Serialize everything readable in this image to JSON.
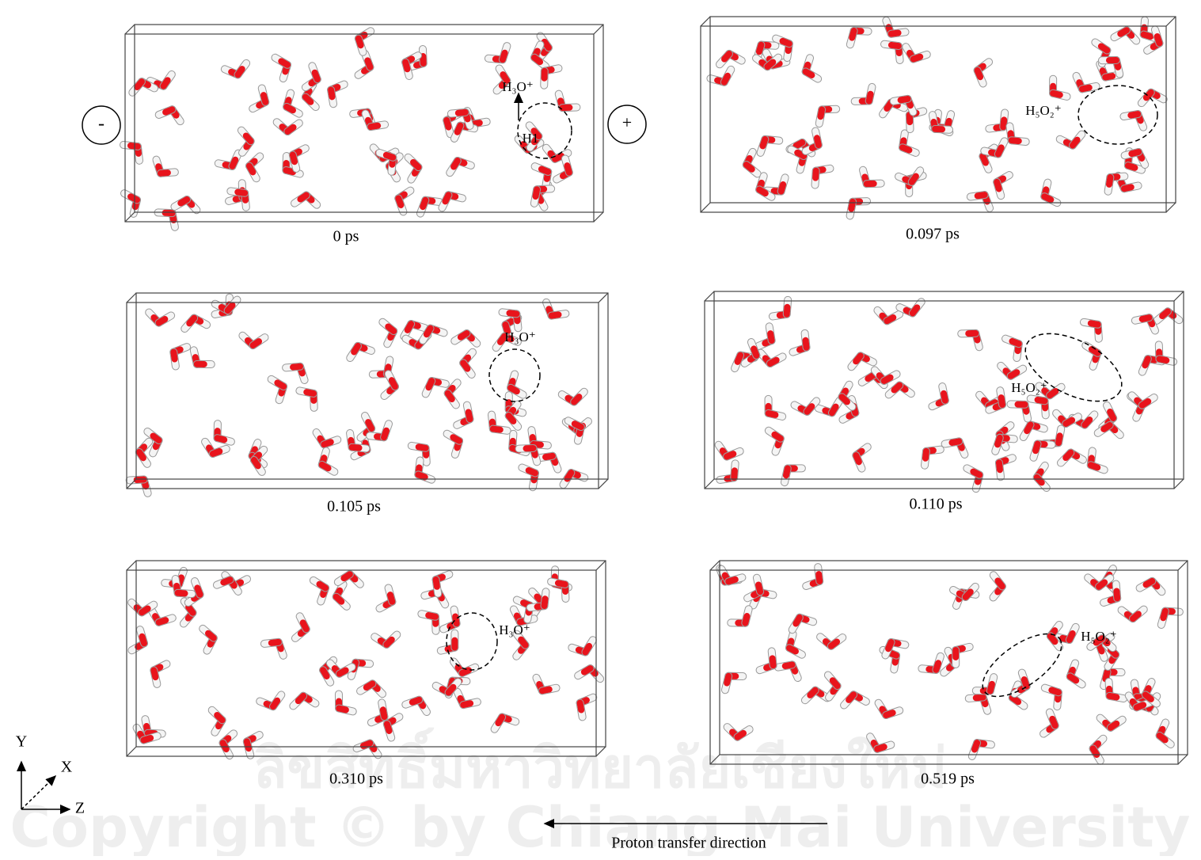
{
  "panels": [
    {
      "time": "0 ps",
      "labels": [
        "H₃O⁺",
        "H1"
      ]
    },
    {
      "time": "0.097 ps",
      "labels": [
        "H₅O₂⁺"
      ]
    },
    {
      "time": "0.105 ps",
      "labels": [
        "H₃O⁺"
      ]
    },
    {
      "time": "0.110 ps",
      "labels": [
        "H₅O₂⁺"
      ]
    },
    {
      "time": "0.310 ps",
      "labels": [
        "H₃O⁺"
      ]
    },
    {
      "time": "0.519 ps",
      "labels": [
        "H₅O₂⁺"
      ]
    }
  ],
  "electrodes": [
    "-",
    "+"
  ],
  "axes": {
    "y": "Y",
    "x": "X",
    "z": "Z"
  },
  "arrow_label": "Proton transfer direction",
  "watermark": [
    "ลิขสิทธิ์มหาวิทยาลัยเชียงใหม่",
    "Copyright © by Chiang Mai University"
  ]
}
